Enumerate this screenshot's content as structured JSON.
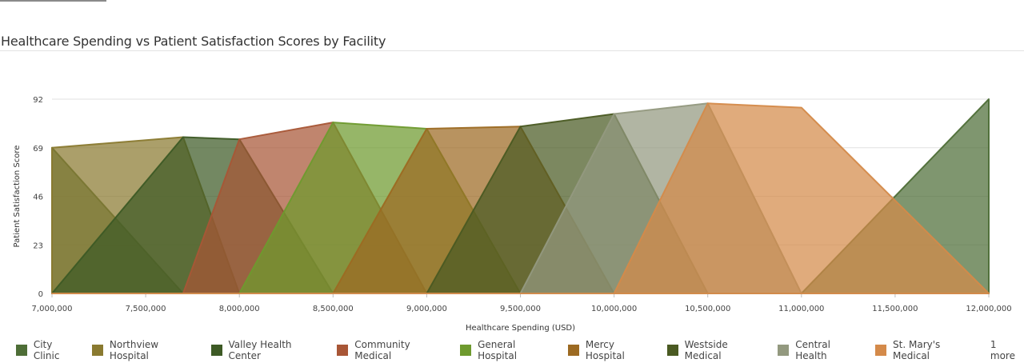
{
  "title": "Healthcare Spending vs Patient Satisfaction Scores by Facility",
  "chart_data": {
    "type": "area",
    "xlabel": "Healthcare Spending (USD)",
    "ylabel": "Patient Satisfaction Score",
    "xlim": [
      7000000,
      12000000
    ],
    "ylim": [
      0,
      92
    ],
    "x_ticks": [
      "7,000,000",
      "7,500,000",
      "8,000,000",
      "8,500,000",
      "9,000,000",
      "9,500,000",
      "10,000,000",
      "10,500,000",
      "11,000,000",
      "11,500,000",
      "12,000,000"
    ],
    "x_tick_values": [
      7000000,
      7500000,
      8000000,
      8500000,
      9000000,
      9500000,
      10000000,
      10500000,
      11000000,
      11500000,
      12000000
    ],
    "y_ticks": [
      "0",
      "23",
      "46",
      "69",
      "92"
    ],
    "y_tick_values": [
      0,
      23,
      46,
      69,
      92
    ],
    "grid": true,
    "legend_position": "bottom",
    "x": [
      7000000,
      7700000,
      8000000,
      8500000,
      9000000,
      9500000,
      10000000,
      10500000,
      11000000,
      12000000
    ],
    "series": [
      {
        "name": "City Clinic",
        "color": "#4e6e37",
        "values": [
          69,
          0,
          0,
          0,
          0,
          0,
          0,
          0,
          0,
          92
        ]
      },
      {
        "name": "Northview Hospital",
        "color": "#8a7a30",
        "values": [
          69,
          74,
          0,
          0,
          0,
          0,
          0,
          0,
          0,
          0
        ]
      },
      {
        "name": "Valley Health Center",
        "color": "#3d5a25",
        "values": [
          0,
          74,
          73,
          0,
          0,
          0,
          0,
          0,
          0,
          0
        ]
      },
      {
        "name": "Community Medical",
        "color": "#a85636",
        "values": [
          0,
          0,
          73,
          81,
          0,
          0,
          0,
          0,
          0,
          0
        ]
      },
      {
        "name": "General Hospital",
        "color": "#6e9a2e",
        "values": [
          0,
          0,
          0,
          81,
          78,
          0,
          0,
          0,
          0,
          0
        ]
      },
      {
        "name": "Mercy Hospital",
        "color": "#9c6a22",
        "values": [
          0,
          0,
          0,
          0,
          78,
          79,
          0,
          0,
          0,
          0
        ]
      },
      {
        "name": "Westside Medical",
        "color": "#4a5a22",
        "values": [
          0,
          0,
          0,
          0,
          0,
          79,
          85,
          0,
          0,
          0
        ]
      },
      {
        "name": "Central Health",
        "color": "#93997f",
        "values": [
          0,
          0,
          0,
          0,
          0,
          0,
          85,
          90,
          0,
          0
        ]
      },
      {
        "name": "St. Mary's Medical",
        "color": "#d48a4a",
        "values": [
          0,
          0,
          0,
          0,
          0,
          0,
          0,
          90,
          88,
          0
        ]
      }
    ],
    "legend_more": "1 more"
  }
}
